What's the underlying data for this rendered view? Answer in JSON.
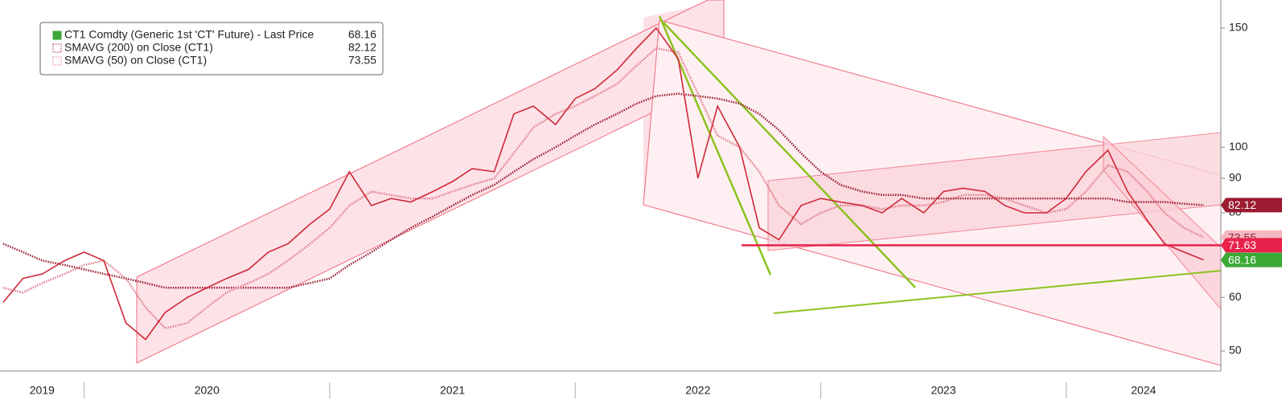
{
  "chart_data": {
    "type": "line",
    "log_scale": true,
    "legend_position": "upper left",
    "x": [
      2019.67,
      2019.75,
      2019.83,
      2019.92,
      2020.0,
      2020.08,
      2020.17,
      2020.25,
      2020.33,
      2020.42,
      2020.5,
      2020.58,
      2020.67,
      2020.75,
      2020.83,
      2020.92,
      2021.0,
      2021.08,
      2021.17,
      2021.25,
      2021.33,
      2021.42,
      2021.5,
      2021.58,
      2021.67,
      2021.75,
      2021.83,
      2021.92,
      2022.0,
      2022.08,
      2022.17,
      2022.25,
      2022.33,
      2022.42,
      2022.5,
      2022.58,
      2022.67,
      2022.75,
      2022.83,
      2022.92,
      2023.0,
      2023.08,
      2023.17,
      2023.25,
      2023.33,
      2023.42,
      2023.5,
      2023.58,
      2023.67,
      2023.75,
      2023.83,
      2023.92,
      2024.0,
      2024.08,
      2024.17,
      2024.25,
      2024.33,
      2024.4,
      2024.48,
      2024.56
    ],
    "series": [
      {
        "name": "CT1 Comdty (Generic 1st 'CT' Future) - Last Price",
        "color": "#3aa935",
        "line_color": "#d0283a",
        "style": "solid",
        "values": [
          59,
          64,
          65,
          68,
          70,
          68,
          55,
          52,
          57,
          60,
          62,
          64,
          66,
          70,
          72,
          77,
          81,
          92,
          82,
          84,
          83,
          86,
          89,
          93,
          92,
          112,
          115,
          108,
          118,
          122,
          130,
          140,
          150,
          135,
          90,
          115,
          100,
          76,
          73,
          82,
          84,
          83,
          82,
          80,
          84,
          80,
          86,
          87,
          86,
          82,
          80,
          80,
          84,
          92,
          99,
          86,
          78,
          72,
          70,
          68.16
        ]
      },
      {
        "name": "SMAVG (200)  on Close (CT1)",
        "color": "#9b1b30",
        "style": "dotted",
        "values": [
          72,
          70,
          68,
          67,
          66,
          65,
          64,
          63,
          62,
          62,
          62,
          62,
          62,
          62,
          62,
          63,
          64,
          67,
          70,
          73,
          76,
          79,
          82,
          85,
          88,
          92,
          96,
          100,
          104,
          108,
          112,
          116,
          119,
          120,
          119,
          118,
          116,
          112,
          106,
          98,
          92,
          88,
          86,
          85,
          85,
          84,
          84,
          84,
          84,
          84,
          84,
          84,
          84,
          84,
          84,
          83,
          83,
          83,
          82.5,
          82.12
        ]
      },
      {
        "name": "SMAVG (50)  on Close (CT1)",
        "color": "#e0788a",
        "style": "dotted",
        "values": [
          62,
          61,
          63,
          65,
          67,
          68,
          64,
          58,
          54,
          55,
          58,
          61,
          63,
          65,
          68,
          72,
          76,
          82,
          86,
          85,
          84,
          84,
          86,
          88,
          90,
          98,
          107,
          112,
          115,
          119,
          124,
          132,
          140,
          138,
          120,
          104,
          100,
          92,
          82,
          77,
          80,
          82,
          82,
          81,
          82,
          82,
          83,
          85,
          85,
          84,
          82,
          80,
          81,
          86,
          94,
          92,
          86,
          80,
          76,
          73.55
        ]
      }
    ],
    "hline": {
      "value": 71.63,
      "color": "#e8224a"
    },
    "xlim": [
      2019.657,
      2024.63
    ],
    "xticks": [
      {
        "value": 2019,
        "label": "2019"
      },
      {
        "value": 2020,
        "label": "2020"
      },
      {
        "value": 2021,
        "label": "2021"
      },
      {
        "value": 2022,
        "label": "2022"
      },
      {
        "value": 2023,
        "label": "2023"
      },
      {
        "value": 2024,
        "label": "2024"
      }
    ],
    "ylim": [
      46.7,
      165
    ],
    "yticks": [
      50,
      60,
      80,
      90,
      100,
      150
    ]
  }
}
